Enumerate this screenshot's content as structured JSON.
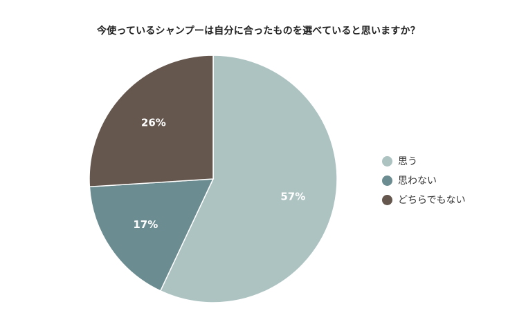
{
  "chart_data": {
    "type": "pie",
    "title": "今使っているシャンプーは自分に合ったものを選べていると思いますか？",
    "categories": [
      "思う",
      "思わない",
      "どちらでもない"
    ],
    "values": [
      57,
      17,
      26
    ],
    "value_labels": [
      "57%",
      "17%",
      "26%"
    ],
    "colors": [
      "#acc3c2",
      "#6b8c90",
      "#65574e"
    ],
    "legend_position": "right"
  }
}
